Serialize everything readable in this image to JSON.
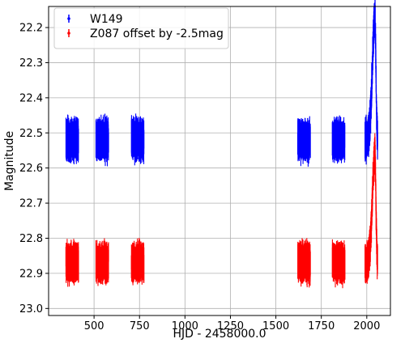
{
  "chart_data": {
    "type": "scatter",
    "title": "",
    "xlabel": "HJD - 2458000.0",
    "ylabel": "Magnitude",
    "xlim": [
      250,
      2130
    ],
    "ylim": [
      23.02,
      22.14
    ],
    "y_inverted": true,
    "grid": true,
    "legend_position": "top-left",
    "x_ticks": [
      {
        "value": 500,
        "label": "500"
      },
      {
        "value": 750,
        "label": "750"
      },
      {
        "value": 1000,
        "label": "1000"
      },
      {
        "value": 1250,
        "label": "1250"
      },
      {
        "value": 1500,
        "label": "1500"
      },
      {
        "value": 1750,
        "label": "1750"
      },
      {
        "value": 2000,
        "label": "2000"
      }
    ],
    "y_ticks": [
      {
        "value": 22.2,
        "label": "22.2"
      },
      {
        "value": 22.3,
        "label": "22.3"
      },
      {
        "value": 22.4,
        "label": "22.4"
      },
      {
        "value": 22.5,
        "label": "22.5"
      },
      {
        "value": 22.6,
        "label": "22.6"
      },
      {
        "value": 22.7,
        "label": "22.7"
      },
      {
        "value": 22.8,
        "label": "22.8"
      },
      {
        "value": 22.9,
        "label": "22.9"
      },
      {
        "value": 23.0,
        "label": "23.0"
      }
    ],
    "series": [
      {
        "name": "W149",
        "color": "#0000ff",
        "seasons": [
          {
            "x_start": 345,
            "x_end": 415,
            "mag_center": 22.52,
            "scatter": 0.1
          },
          {
            "x_start": 510,
            "x_end": 580,
            "mag_center": 22.52,
            "scatter": 0.1
          },
          {
            "x_start": 705,
            "x_end": 775,
            "mag_center": 22.52,
            "scatter": 0.1
          },
          {
            "x_start": 1620,
            "x_end": 1690,
            "mag_center": 22.52,
            "scatter": 0.1
          },
          {
            "x_start": 1810,
            "x_end": 1880,
            "mag_center": 22.52,
            "scatter": 0.1
          },
          {
            "x_start": 1990,
            "x_end": 2060,
            "mag_center": 22.52,
            "scatter": 0.1
          }
        ],
        "event": {
          "x_peak": 2045,
          "peak_mag": 22.17
        }
      },
      {
        "name": "Z087 offset by -2.5mag",
        "color": "#ff0000",
        "seasons": [
          {
            "x_start": 345,
            "x_end": 415,
            "mag_center": 22.87,
            "scatter": 0.09
          },
          {
            "x_start": 510,
            "x_end": 580,
            "mag_center": 22.87,
            "scatter": 0.09
          },
          {
            "x_start": 705,
            "x_end": 775,
            "mag_center": 22.87,
            "scatter": 0.09
          },
          {
            "x_start": 1620,
            "x_end": 1690,
            "mag_center": 22.87,
            "scatter": 0.09
          },
          {
            "x_start": 1810,
            "x_end": 1880,
            "mag_center": 22.87,
            "scatter": 0.09
          },
          {
            "x_start": 1990,
            "x_end": 2060,
            "mag_center": 22.87,
            "scatter": 0.09
          }
        ],
        "event": {
          "x_peak": 2045,
          "peak_mag": 22.56
        }
      }
    ]
  }
}
